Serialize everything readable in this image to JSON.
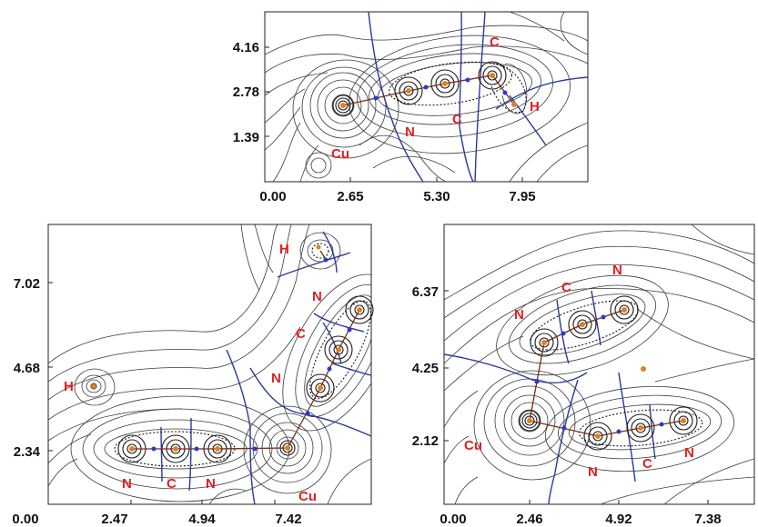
{
  "panels": {
    "top": {
      "y_ticks": [
        "4.16",
        "2.78",
        "1.39"
      ],
      "x_ticks": [
        "0.00",
        "2.65",
        "5.30",
        "7.95"
      ],
      "atom_labels": [
        "C",
        "H",
        "C",
        "N",
        "Cu"
      ]
    },
    "bottom_left": {
      "y_ticks": [
        "7.02",
        "4.68",
        "2.34"
      ],
      "x_ticks": [
        "0.00",
        "2.47",
        "4.94",
        "7.42"
      ],
      "atom_labels": [
        "H",
        "N",
        "C",
        "N",
        "H",
        "N",
        "C",
        "N",
        "Cu"
      ]
    },
    "bottom_right": {
      "y_ticks": [
        "6.37",
        "4.25",
        "2.12"
      ],
      "x_ticks": [
        "0.00",
        "2.46",
        "4.92",
        "7.38"
      ],
      "atom_labels": [
        "N",
        "C",
        "N",
        "Cu",
        "N",
        "C",
        "N"
      ]
    }
  },
  "colors": {
    "contour": "#3a3a3a",
    "bond_path": "#7a2a1a",
    "zero_flux": "#2a3a9a",
    "nucleus": "#e08020",
    "bcp": "#2a3ad0",
    "label": "#e02020"
  }
}
